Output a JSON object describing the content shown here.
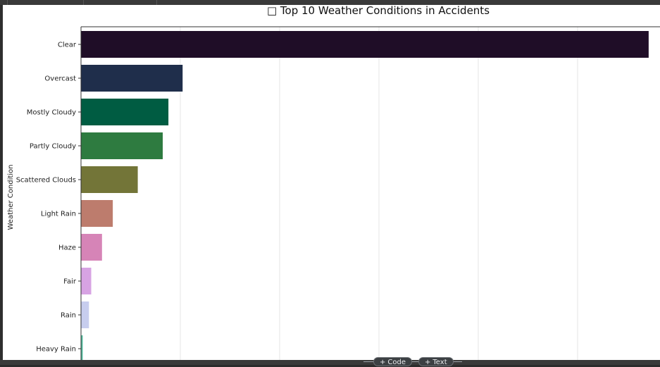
{
  "chart_data": {
    "type": "bar",
    "orientation": "horizontal",
    "title": "□ Top 10 Weather Conditions in Accidents",
    "ylabel": "Weather Condition",
    "xlabel": "",
    "categories": [
      "Clear",
      "Overcast",
      "Mostly Cloudy",
      "Partly Cloudy",
      "Scattered Clouds",
      "Light Rain",
      "Haze",
      "Fair",
      "Rain",
      "Heavy Rain"
    ],
    "values": [
      1.0,
      0.179,
      0.154,
      0.144,
      0.1,
      0.056,
      0.037,
      0.018,
      0.014,
      0.003
    ],
    "xlim": [
      0,
      1.02
    ],
    "grid": "vertical",
    "colors": [
      "#1f0d27",
      "#1f2e4b",
      "#005c42",
      "#2e7b40",
      "#737538",
      "#bd7c6d",
      "#d684b7",
      "#d7a3e3",
      "#c7cdee",
      "#4fb89a"
    ]
  },
  "toolbar": {
    "code_button": "Code",
    "text_button": "Text"
  }
}
